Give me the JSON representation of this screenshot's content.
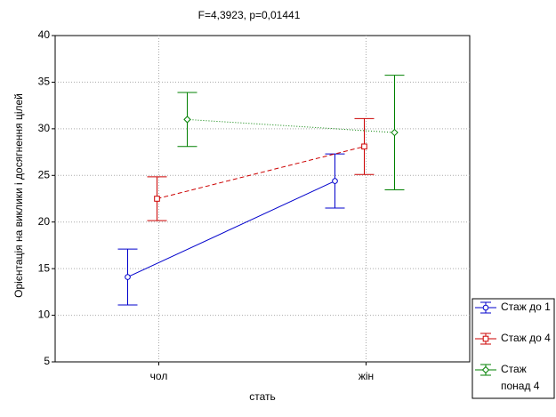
{
  "chart_data": {
    "type": "line",
    "title": "F=4,3923, p=0,01441",
    "x_label": "стать",
    "y_label": "Орієнтація на виклики і досягнення цілей",
    "categories": [
      "чол",
      "жін"
    ],
    "series": [
      {
        "name": "Стаж до 1",
        "color": "#0000cc",
        "marker": "circle",
        "dash": "solid",
        "values": [
          14.1,
          24.4
        ],
        "errors": [
          3.0,
          2.9
        ]
      },
      {
        "name": "Стаж до 4",
        "color": "#cc0000",
        "marker": "square",
        "dash": "dashed",
        "values": [
          22.5,
          28.1
        ],
        "errors": [
          2.35,
          3.0
        ]
      },
      {
        "name": "Стаж понад 4",
        "color": "#008000",
        "marker": "diamond",
        "dash": "dotted",
        "values": [
          31.0,
          29.6
        ],
        "errors": [
          2.9,
          6.15
        ]
      }
    ],
    "ylim": [
      5,
      40
    ],
    "yticks": [
      5,
      10,
      15,
      20,
      25,
      30,
      35,
      40
    ],
    "grid": true,
    "legend": "bottom-right"
  }
}
